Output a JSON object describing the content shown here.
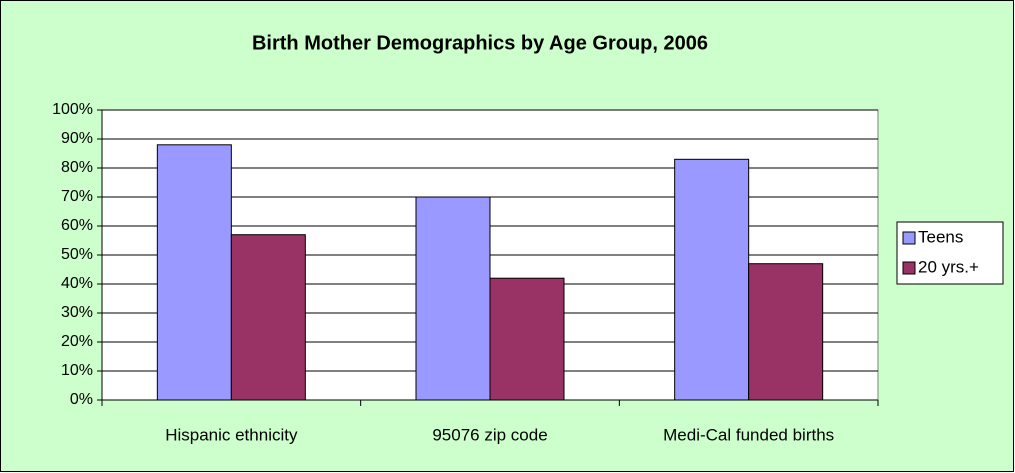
{
  "chart_data": {
    "type": "bar",
    "title": "Birth Mother Demographics by Age Group, 2006",
    "categories": [
      "Hispanic ethnicity",
      "95076 zip code",
      "Medi-Cal funded births"
    ],
    "series": [
      {
        "name": "Teens",
        "color": "#9999ff",
        "values": [
          88,
          70,
          83
        ]
      },
      {
        "name": "20 yrs.+",
        "color": "#993366",
        "values": [
          57,
          42,
          47
        ]
      }
    ],
    "ylim": [
      0,
      100
    ],
    "yticks": [
      {
        "value": 0,
        "label": "0%"
      },
      {
        "value": 10,
        "label": "10%"
      },
      {
        "value": 20,
        "label": "20%"
      },
      {
        "value": 30,
        "label": "30%"
      },
      {
        "value": 40,
        "label": "40%"
      },
      {
        "value": 50,
        "label": "50%"
      },
      {
        "value": 60,
        "label": "60%"
      },
      {
        "value": 70,
        "label": "70%"
      },
      {
        "value": 80,
        "label": "80%"
      },
      {
        "value": 90,
        "label": "90%"
      },
      {
        "value": 100,
        "label": "100%"
      }
    ],
    "grid": true,
    "legend": "right"
  }
}
